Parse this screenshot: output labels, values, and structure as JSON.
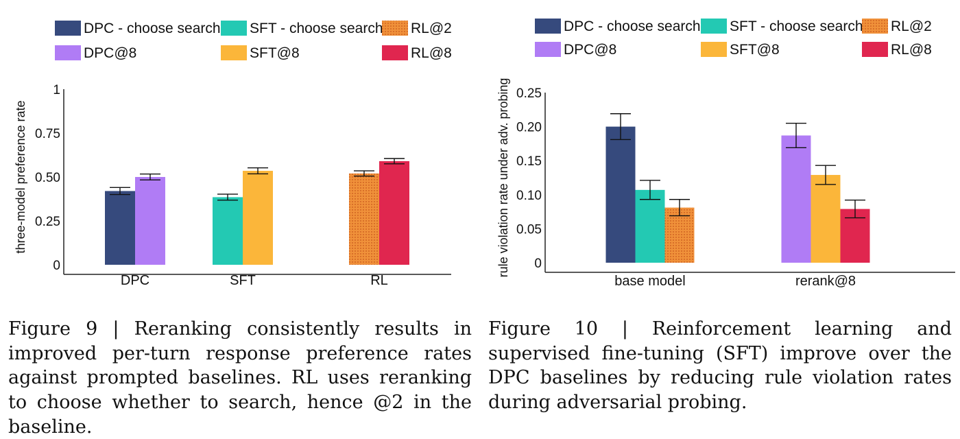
{
  "colors": {
    "dpc_search": "#364a7d",
    "dpc8": "#b07cf5",
    "sft_search": "#23c9b3",
    "sft8": "#fbb63a",
    "rl2": "#f0913a",
    "rl8": "#e0264f"
  },
  "chart_data": [
    {
      "type": "bar",
      "legend": [
        {
          "label": "DPC - choose search",
          "color": "#364a7d"
        },
        {
          "label": "SFT - choose search",
          "color": "#23c9b3"
        },
        {
          "label": "RL@2",
          "color": "#f0913a",
          "pattern": "dots"
        },
        {
          "label": "DPC@8",
          "color": "#b07cf5"
        },
        {
          "label": "SFT@8",
          "color": "#fbb63a"
        },
        {
          "label": "RL@8",
          "color": "#e0264f"
        }
      ],
      "legend_placement": "top",
      "ylabel": "three-model preference rate",
      "ylim": [
        0,
        1
      ],
      "yticks": [
        0,
        0.25,
        0.5,
        0.75,
        1
      ],
      "ytick_labels": [
        "0",
        "0.25",
        "0.50",
        "0.75",
        "1"
      ],
      "categories": [
        "DPC",
        "SFT",
        "RL"
      ],
      "groups": [
        {
          "bars": [
            {
              "series": "DPC - choose search",
              "value": 0.42,
              "err": 0.02,
              "color": "#364a7d"
            },
            {
              "series": "DPC@8",
              "value": 0.5,
              "err": 0.017,
              "color": "#b07cf5"
            }
          ]
        },
        {
          "bars": [
            {
              "series": "SFT - choose search",
              "value": 0.385,
              "err": 0.017,
              "color": "#23c9b3"
            },
            {
              "series": "SFT@8",
              "value": 0.535,
              "err": 0.017,
              "color": "#fbb63a"
            }
          ]
        },
        {
          "bars": [
            {
              "series": "RL@2",
              "value": 0.52,
              "err": 0.015,
              "color": "#f0913a",
              "pattern": "dots"
            },
            {
              "series": "RL@8",
              "value": 0.59,
              "err": 0.015,
              "color": "#e0264f"
            }
          ]
        }
      ],
      "grid": false
    },
    {
      "type": "bar",
      "legend": [
        {
          "label": "DPC - choose search",
          "color": "#364a7d"
        },
        {
          "label": "SFT - choose search",
          "color": "#23c9b3"
        },
        {
          "label": "RL@2",
          "color": "#f0913a",
          "pattern": "dots"
        },
        {
          "label": "DPC@8",
          "color": "#b07cf5"
        },
        {
          "label": "SFT@8",
          "color": "#fbb63a"
        },
        {
          "label": "RL@8",
          "color": "#e0264f"
        }
      ],
      "legend_placement": "top",
      "ylabel": "rule violation rate under adv. probing",
      "ylim": [
        0,
        0.25
      ],
      "yticks": [
        0,
        0.05,
        0.1,
        0.15,
        0.2,
        0.25
      ],
      "ytick_labels": [
        "0",
        "0.05",
        "0.10",
        "0.15",
        "0.20",
        "0.25"
      ],
      "categories": [
        "base model",
        "rerank@8"
      ],
      "groups": [
        {
          "bars": [
            {
              "series": "DPC - choose search",
              "value": 0.2,
              "err": 0.019,
              "color": "#364a7d"
            },
            {
              "series": "SFT - choose search",
              "value": 0.107,
              "err": 0.014,
              "color": "#23c9b3"
            },
            {
              "series": "RL@2",
              "value": 0.081,
              "err": 0.012,
              "color": "#f0913a",
              "pattern": "dots"
            }
          ]
        },
        {
          "bars": [
            {
              "series": "DPC@8",
              "value": 0.187,
              "err": 0.018,
              "color": "#b07cf5"
            },
            {
              "series": "SFT@8",
              "value": 0.129,
              "err": 0.014,
              "color": "#fbb63a"
            },
            {
              "series": "RL@8",
              "value": 0.079,
              "err": 0.013,
              "color": "#e0264f"
            }
          ]
        }
      ],
      "grid": false
    }
  ],
  "captions": {
    "fig9": "Figure 9 | Reranking consistently results in improved per-turn response preference rates against prompted baselines. RL uses reranking to choose whether to search, hence @2 in the baseline.",
    "fig10": "Figure 10 | Reinforcement learning and supervised fine-tuning (SFT) improve over the DPC baselines by reducing rule violation rates during adversarial probing."
  }
}
